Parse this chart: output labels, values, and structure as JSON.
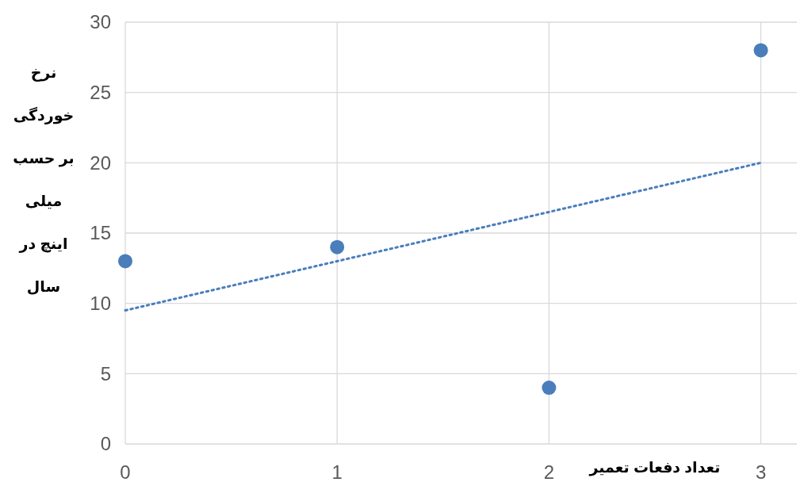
{
  "chart_data": {
    "type": "scatter",
    "xlabel": "تعداد دفعات تعمیر",
    "ylabel": "نرخ خوردگی بر حسب میلی اینچ در سال",
    "xlim": [
      0,
      3.17
    ],
    "ylim": [
      0,
      30
    ],
    "xticks": [
      0,
      1,
      2,
      3
    ],
    "yticks": [
      0,
      5,
      10,
      15,
      20,
      25,
      30
    ],
    "grid": true,
    "series": [
      {
        "color": "#4a7ebb",
        "x": [
          0,
          1,
          2,
          3
        ],
        "values": [
          13,
          14,
          4,
          28
        ],
        "marker": "circle"
      },
      {
        "type": "line",
        "color": "#4a7ebb",
        "x": [
          0,
          3
        ],
        "values": [
          9.5,
          20
        ],
        "line_style": "dotted"
      }
    ]
  }
}
